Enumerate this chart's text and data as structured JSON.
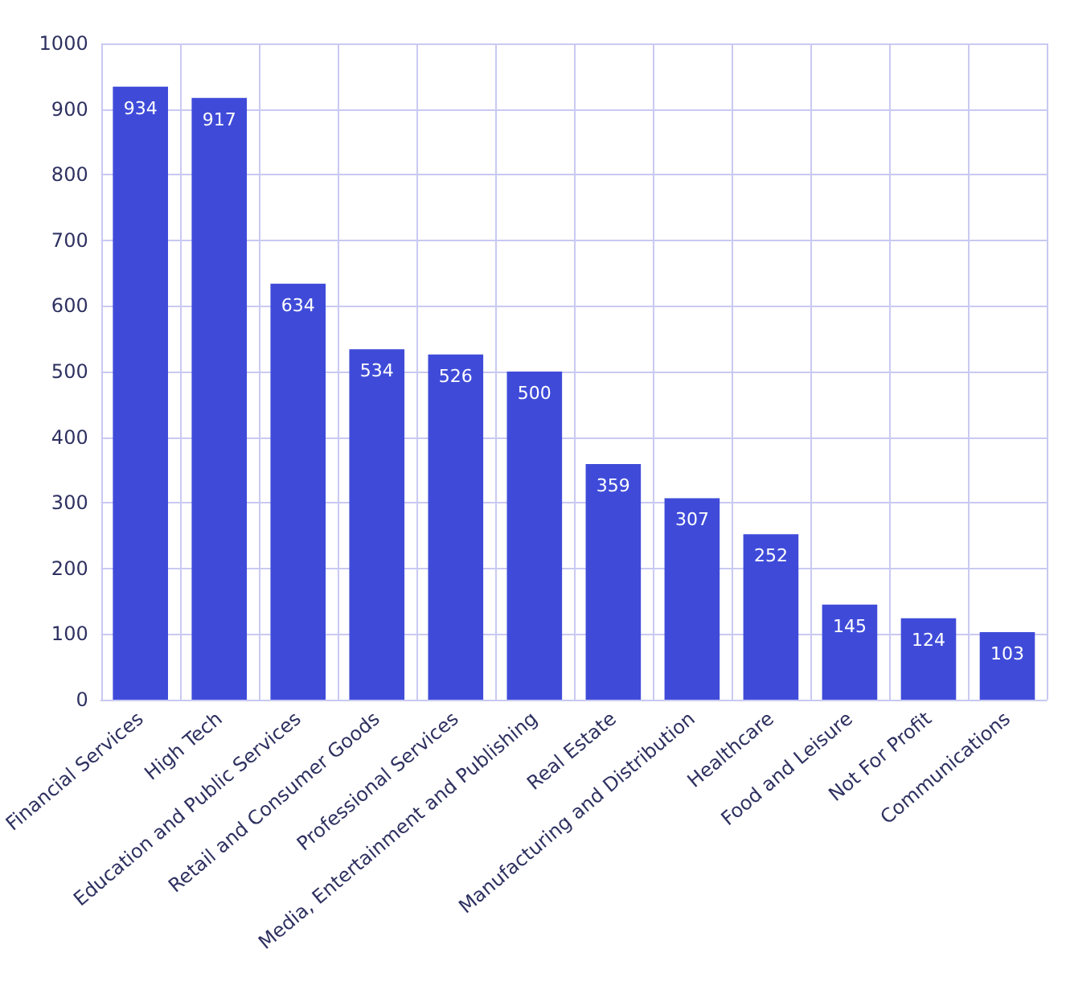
{
  "chart_data": {
    "type": "bar",
    "categories": [
      "Financial Services",
      "High Tech",
      "Education and Public Services",
      "Retail and Consumer Goods",
      "Professional Services",
      "Media, Entertainment and Publishing",
      "Real Estate",
      "Manufacturing and Distribution",
      "Healthcare",
      "Food and Leisure",
      "Not For Profit",
      "Communications"
    ],
    "values": [
      934,
      917,
      634,
      534,
      526,
      500,
      359,
      307,
      252,
      145,
      124,
      103
    ],
    "color": "#3f4bd8",
    "ylim": [
      0,
      1000
    ],
    "yticks": [
      0,
      100,
      200,
      300,
      400,
      500,
      600,
      700,
      800,
      900,
      1000
    ],
    "grid": true,
    "data_labels": true
  }
}
